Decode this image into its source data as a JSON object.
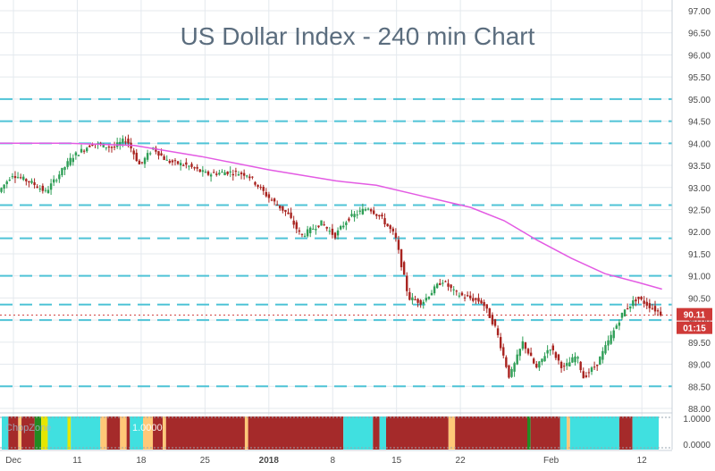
{
  "chart_data": {
    "type": "candlestick",
    "title": "US Dollar Index - 240 min Chart",
    "y_ticks": [
      "97.00",
      "96.50",
      "96.00",
      "95.50",
      "95.00",
      "94.50",
      "94.00",
      "93.50",
      "93.00",
      "92.50",
      "92.00",
      "91.50",
      "91.00",
      "90.50",
      "90.00",
      "89.50",
      "89.00",
      "88.50",
      "88.00"
    ],
    "ylim": [
      88.0,
      97.0
    ],
    "x_ticks": [
      {
        "label": "Dec",
        "pos": 0.02
      },
      {
        "label": "11",
        "pos": 0.115
      },
      {
        "label": "18",
        "pos": 0.21
      },
      {
        "label": "25",
        "pos": 0.305
      },
      {
        "label": "2018",
        "pos": 0.4
      },
      {
        "label": "8",
        "pos": 0.495
      },
      {
        "label": "15",
        "pos": 0.59
      },
      {
        "label": "22",
        "pos": 0.685
      },
      {
        "label": "Feb",
        "pos": 0.82
      },
      {
        "label": "12",
        "pos": 0.955
      }
    ],
    "horizontal_levels": [
      95.0,
      94.5,
      94.0,
      92.6,
      91.85,
      91.0,
      90.35,
      90.0,
      88.5
    ],
    "price_label": "90.11",
    "last_price": 90.11,
    "time_label": "01:15",
    "moving_average": [
      [
        0,
        94.0
      ],
      [
        0.1,
        94.0
      ],
      [
        0.2,
        93.95
      ],
      [
        0.3,
        93.7
      ],
      [
        0.4,
        93.4
      ],
      [
        0.5,
        93.15
      ],
      [
        0.56,
        93.05
      ],
      [
        0.63,
        92.8
      ],
      [
        0.7,
        92.55
      ],
      [
        0.75,
        92.25
      ],
      [
        0.8,
        91.8
      ],
      [
        0.85,
        91.4
      ],
      [
        0.9,
        91.05
      ],
      [
        0.95,
        90.85
      ],
      [
        0.985,
        90.7
      ]
    ],
    "price_path": [
      [
        0,
        92.9
      ],
      [
        0.02,
        93.3
      ],
      [
        0.05,
        93.1
      ],
      [
        0.07,
        92.9
      ],
      [
        0.09,
        93.3
      ],
      [
        0.11,
        93.7
      ],
      [
        0.14,
        94.0
      ],
      [
        0.17,
        93.9
      ],
      [
        0.19,
        94.1
      ],
      [
        0.21,
        93.5
      ],
      [
        0.23,
        93.9
      ],
      [
        0.25,
        93.6
      ],
      [
        0.28,
        93.5
      ],
      [
        0.31,
        93.3
      ],
      [
        0.34,
        93.35
      ],
      [
        0.37,
        93.3
      ],
      [
        0.4,
        92.8
      ],
      [
        0.43,
        92.4
      ],
      [
        0.45,
        91.9
      ],
      [
        0.48,
        92.2
      ],
      [
        0.5,
        91.9
      ],
      [
        0.52,
        92.3
      ],
      [
        0.55,
        92.55
      ],
      [
        0.57,
        92.3
      ],
      [
        0.59,
        91.9
      ],
      [
        0.61,
        90.5
      ],
      [
        0.63,
        90.4
      ],
      [
        0.66,
        90.9
      ],
      [
        0.68,
        90.6
      ],
      [
        0.7,
        90.5
      ],
      [
        0.72,
        90.4
      ],
      [
        0.74,
        89.8
      ],
      [
        0.76,
        88.7
      ],
      [
        0.78,
        89.5
      ],
      [
        0.8,
        88.9
      ],
      [
        0.82,
        89.4
      ],
      [
        0.84,
        88.9
      ],
      [
        0.86,
        89.2
      ],
      [
        0.87,
        88.7
      ],
      [
        0.89,
        89.0
      ],
      [
        0.91,
        89.6
      ],
      [
        0.93,
        90.2
      ],
      [
        0.95,
        90.5
      ],
      [
        0.97,
        90.3
      ],
      [
        0.985,
        90.15
      ]
    ],
    "indicator": {
      "label": "ChopZone",
      "value": "1.0000",
      "y_ticks": [
        "1.0000",
        "0.0000"
      ],
      "colors": {
        "red": "#a52a2a",
        "cyan": "#40e0e0",
        "orange": "#ffc878",
        "green": "#228b22",
        "yellow": "#e6e600"
      },
      "segments": [
        [
          "cyan",
          0.0,
          0.01
        ],
        [
          "red",
          0.01,
          0.025
        ],
        [
          "orange",
          0.025,
          0.03
        ],
        [
          "red",
          0.03,
          0.05
        ],
        [
          "green",
          0.05,
          0.06
        ],
        [
          "yellow",
          0.06,
          0.07
        ],
        [
          "cyan",
          0.07,
          0.1
        ],
        [
          "yellow",
          0.1,
          0.105
        ],
        [
          "cyan",
          0.105,
          0.15
        ],
        [
          "orange",
          0.15,
          0.16
        ],
        [
          "red",
          0.16,
          0.18
        ],
        [
          "orange",
          0.18,
          0.19
        ],
        [
          "red",
          0.19,
          0.195
        ],
        [
          "cyan",
          0.195,
          0.215
        ],
        [
          "orange",
          0.215,
          0.23
        ],
        [
          "red",
          0.23,
          0.245
        ],
        [
          "orange",
          0.245,
          0.25
        ],
        [
          "red",
          0.25,
          0.37
        ],
        [
          "orange",
          0.37,
          0.375
        ],
        [
          "red",
          0.375,
          0.52
        ],
        [
          "cyan",
          0.52,
          0.565
        ],
        [
          "red",
          0.565,
          0.575
        ],
        [
          "cyan",
          0.575,
          0.585
        ],
        [
          "red",
          0.585,
          0.68
        ],
        [
          "orange",
          0.68,
          0.69
        ],
        [
          "red",
          0.69,
          0.8
        ],
        [
          "green",
          0.8,
          0.805
        ],
        [
          "red",
          0.805,
          0.85
        ],
        [
          "cyan",
          0.85,
          0.86
        ],
        [
          "orange",
          0.86,
          0.865
        ],
        [
          "cyan",
          0.865,
          0.94
        ],
        [
          "red",
          0.94,
          0.96
        ],
        [
          "cyan",
          0.96,
          1.0
        ]
      ]
    },
    "colors": {
      "title": "#5b6d7e",
      "level_line": "#4fc3d6",
      "ma_line": "#e35be3",
      "price_badge": "#cf3a38",
      "up": "#2e9e56",
      "down": "#a8231f",
      "grid": "#e4e9ee",
      "axis_text": "#4a4a4a"
    }
  }
}
